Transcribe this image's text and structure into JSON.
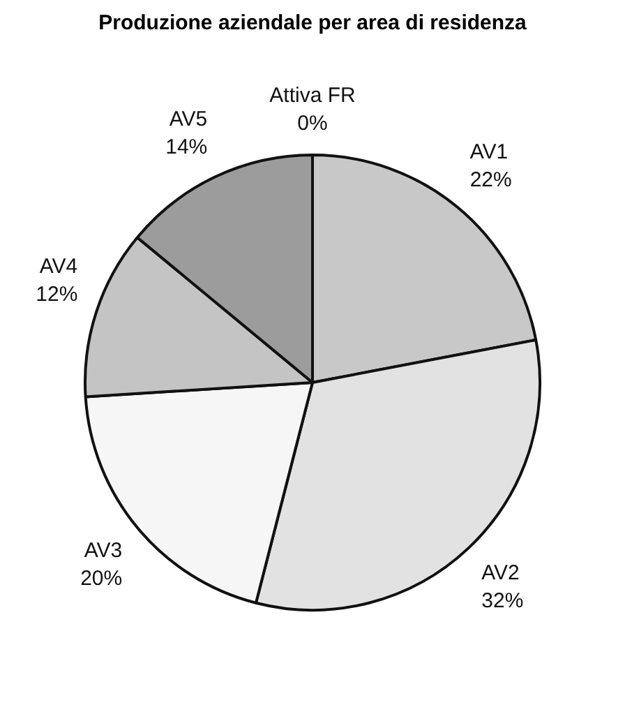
{
  "chart_data": {
    "type": "pie",
    "title": "Produzione aziendale per area di residenza",
    "categories": [
      "AV1",
      "AV2",
      "AV3",
      "AV4",
      "AV5",
      "Attiva FR"
    ],
    "values": [
      22,
      32,
      20,
      12,
      14,
      0
    ],
    "value_labels": [
      "22%",
      "32%",
      "20%",
      "12%",
      "14%",
      "0%"
    ],
    "colors": [
      "#c8c8c8",
      "#e2e2e2",
      "#f6f6f6",
      "#c4c4c4",
      "#9c9c9c",
      "#ffffff"
    ],
    "legend": false
  }
}
